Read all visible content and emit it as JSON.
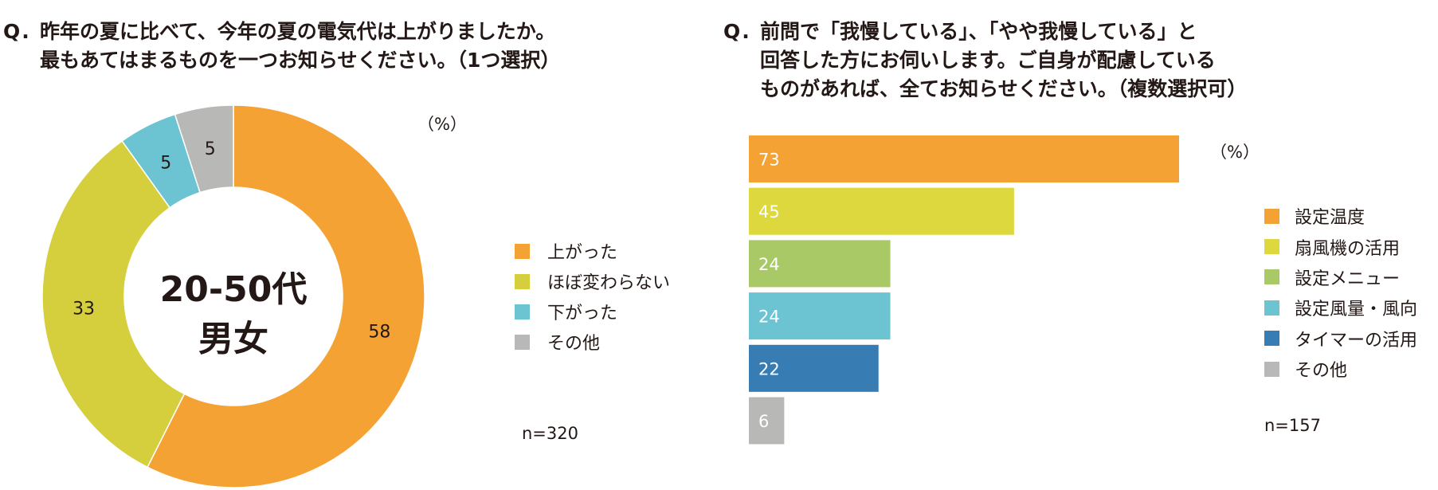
{
  "charts": {
    "left": {
      "question_mark": "Q.",
      "question_text": "昨年の夏に比べて、今年の夏の電気代は上がりましたか。\n最もあてはまるものを一つお知らせください。（1つ選択）",
      "unit": "（%）",
      "center_line1": "20-50代",
      "center_line2": "男女",
      "n": "n=320"
    },
    "right": {
      "question_mark": "Q.",
      "question_text": "前問で「我慢している」、「やや我慢している」と\n回答した方にお伺いします。ご自身が配慮している\nものがあれば、全てお知らせください。（複数選択可）",
      "unit": "（%）",
      "n": "n=157"
    }
  },
  "chart_data": [
    {
      "type": "pie",
      "categories": [
        "上がった",
        "ほぼ変わらない",
        "下がった",
        "その他"
      ],
      "values": [
        58,
        33,
        5,
        5
      ],
      "colors": [
        "#F4A233",
        "#D5CF3E",
        "#6CC4D2",
        "#B8B8B7"
      ],
      "donut": true,
      "legend": "right"
    },
    {
      "type": "bar",
      "orientation": "horizontal",
      "categories": [
        "設定温度",
        "扇風機の活用",
        "設定メニュー",
        "設定風量・風向",
        "タイマーの活用",
        "その他"
      ],
      "values": [
        73,
        45,
        24,
        24,
        22,
        6
      ],
      "colors": [
        "#F4A233",
        "#DCD83E",
        "#A9C966",
        "#6CC4D2",
        "#377DB3",
        "#B8B8B7"
      ],
      "legend": "right"
    }
  ]
}
